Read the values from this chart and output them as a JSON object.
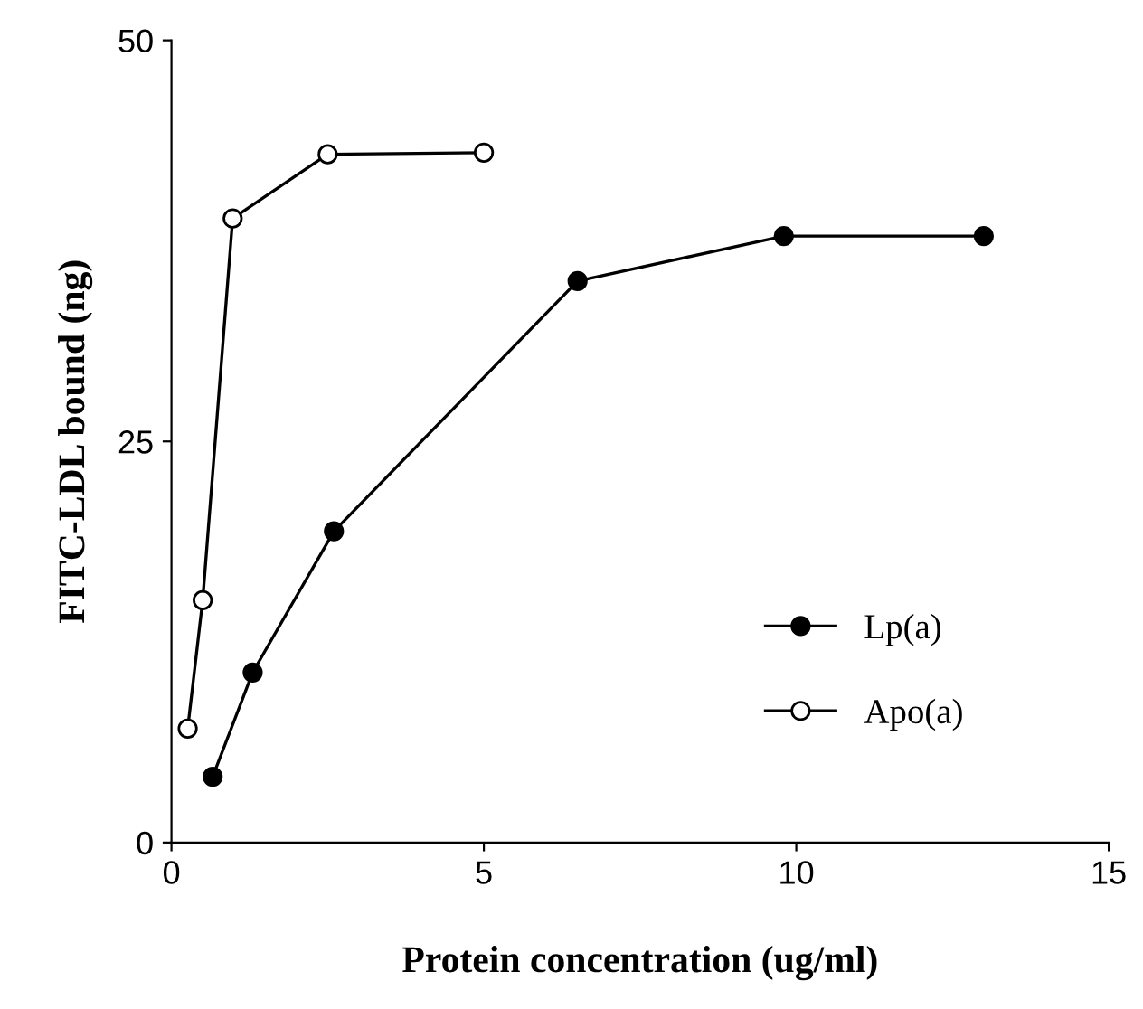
{
  "chart_data": {
    "type": "line",
    "xlabel": "Protein concentration (ug/ml)",
    "ylabel": "FITC-LDL bound (ng)",
    "xlim": [
      0,
      15
    ],
    "xticks": [
      0,
      5,
      10,
      15
    ],
    "ylim": [
      0,
      50
    ],
    "yticks": [
      0,
      25,
      50
    ],
    "grid": false,
    "legend": "bottom right",
    "marker": "circle",
    "line_style": "solid",
    "series": [
      {
        "name": "Lp(a)",
        "color": "#000000",
        "x": [
          0.66,
          1.3,
          2.6,
          6.5,
          9.8,
          13.0
        ],
        "values": [
          4.1,
          10.6,
          19.4,
          35.0,
          37.8,
          37.8
        ]
      },
      {
        "name": "Apo(a)",
        "color": "#000000",
        "x": [
          0.26,
          0.5,
          0.98,
          2.5,
          5.0
        ],
        "values": [
          7.1,
          15.1,
          38.9,
          42.9,
          43.0
        ]
      }
    ]
  }
}
